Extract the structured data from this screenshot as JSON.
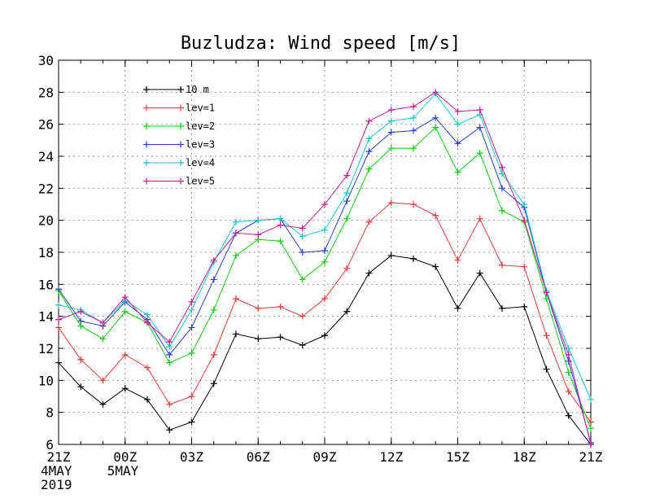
{
  "chart_data": {
    "type": "line",
    "title": "Buzludza: Wind speed [m/s]",
    "xlabel": "",
    "ylabel": "",
    "ylim": [
      6,
      30
    ],
    "yticks": [
      6,
      8,
      10,
      12,
      14,
      16,
      18,
      20,
      22,
      24,
      26,
      28,
      30
    ],
    "xlim": [
      0,
      24
    ],
    "x_unit": "hours since 21Z 4MAY 2019",
    "xticks": [
      {
        "x": 0,
        "lines": [
          "21Z",
          "4MAY",
          "2019"
        ]
      },
      {
        "x": 3,
        "lines": [
          "00Z",
          "5MAY"
        ]
      },
      {
        "x": 6,
        "lines": [
          "03Z"
        ]
      },
      {
        "x": 9,
        "lines": [
          "06Z"
        ]
      },
      {
        "x": 12,
        "lines": [
          "09Z"
        ]
      },
      {
        "x": 15,
        "lines": [
          "12Z"
        ]
      },
      {
        "x": 18,
        "lines": [
          "15Z"
        ]
      },
      {
        "x": 21,
        "lines": [
          "18Z"
        ]
      },
      {
        "x": 24,
        "lines": [
          "21Z"
        ]
      }
    ],
    "grid": true,
    "legend_position": "top-left",
    "x": [
      0,
      1,
      2,
      3,
      4,
      5,
      6,
      7,
      8,
      9,
      10,
      11,
      12,
      13,
      14,
      15,
      16,
      17,
      18,
      19,
      20,
      21,
      22,
      23,
      24
    ],
    "series": [
      {
        "name": "10 m",
        "color": "#000000",
        "values": [
          11.1,
          9.6,
          8.5,
          9.5,
          8.8,
          6.9,
          7.4,
          9.8,
          12.9,
          12.6,
          12.7,
          12.2,
          12.8,
          14.3,
          16.7,
          17.8,
          17.6,
          17.1,
          14.5,
          16.7,
          14.5,
          14.6,
          10.7,
          7.8,
          6.0
        ]
      },
      {
        "name": "lev=1",
        "color": "#e33c3c",
        "values": [
          13.3,
          11.3,
          10.0,
          11.6,
          10.8,
          8.5,
          9.0,
          11.6,
          15.1,
          14.5,
          14.6,
          14.0,
          15.1,
          17.0,
          19.9,
          21.1,
          21.0,
          20.3,
          17.5,
          20.1,
          17.2,
          17.1,
          12.8,
          9.3,
          7.4
        ]
      },
      {
        "name": "lev=2",
        "color": "#12d112",
        "values": [
          15.6,
          13.4,
          12.6,
          14.3,
          13.6,
          11.1,
          11.7,
          14.4,
          17.8,
          18.8,
          18.7,
          16.3,
          17.4,
          20.1,
          23.2,
          24.5,
          24.5,
          25.8,
          23.0,
          24.2,
          20.6,
          19.9,
          15.1,
          10.5,
          7.0
        ]
      },
      {
        "name": "lev=3",
        "color": "#2a3ed6",
        "values": [
          15.7,
          13.7,
          13.4,
          14.9,
          13.8,
          11.6,
          13.3,
          16.3,
          19.2,
          20.0,
          20.1,
          18.0,
          18.1,
          21.2,
          24.3,
          25.5,
          25.6,
          26.4,
          24.8,
          25.8,
          22.0,
          20.8,
          15.5,
          11.2,
          6.1
        ]
      },
      {
        "name": "lev=4",
        "color": "#19c7c7",
        "values": [
          14.7,
          14.4,
          13.6,
          15.0,
          14.1,
          12.1,
          14.4,
          17.4,
          19.9,
          20.0,
          20.1,
          19.0,
          19.4,
          21.7,
          25.1,
          26.2,
          26.4,
          27.9,
          26.0,
          26.6,
          22.9,
          21.0,
          15.6,
          12.0,
          8.8
        ]
      },
      {
        "name": "lev=5",
        "color": "#c31f8f",
        "values": [
          13.8,
          14.3,
          13.6,
          15.2,
          13.6,
          12.4,
          14.9,
          17.5,
          19.2,
          19.1,
          19.7,
          19.5,
          21.0,
          22.8,
          26.2,
          26.9,
          27.1,
          28.0,
          26.8,
          26.9,
          23.3,
          20.0,
          15.5,
          11.6,
          6.0
        ]
      }
    ]
  }
}
